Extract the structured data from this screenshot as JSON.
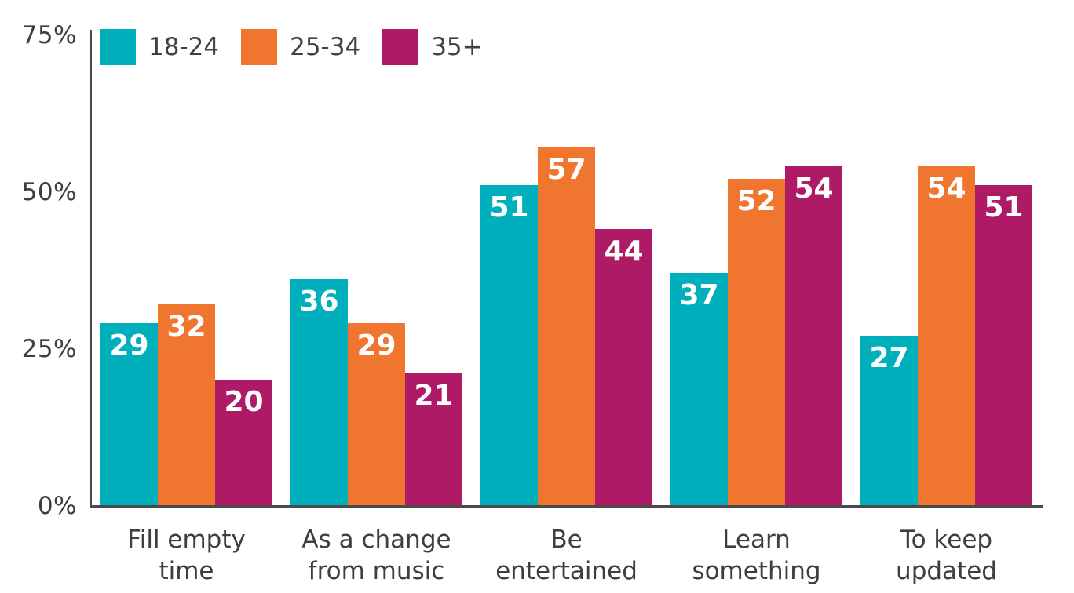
{
  "chart_data": {
    "type": "bar",
    "title": "",
    "categories": [
      "Fill empty time",
      "As a change from music",
      "Be entertained",
      "Learn something",
      "To keep updated"
    ],
    "category_label_lines": [
      [
        "Fill empty",
        "time"
      ],
      [
        "As a change",
        "from music"
      ],
      [
        "Be",
        "entertained"
      ],
      [
        "Learn",
        "something"
      ],
      [
        "To keep",
        "updated"
      ]
    ],
    "series": [
      {
        "name": "18-24",
        "color": "#00AFBC",
        "values": [
          29,
          36,
          51,
          37,
          27
        ]
      },
      {
        "name": "25-34",
        "color": "#F0752F",
        "values": [
          32,
          29,
          57,
          52,
          54
        ]
      },
      {
        "name": "35+",
        "color": "#AE1A66",
        "values": [
          20,
          21,
          44,
          54,
          51
        ]
      }
    ],
    "y_ticks": [
      {
        "label": "0%",
        "value": 0
      },
      {
        "label": "25%",
        "value": 25
      },
      {
        "label": "50%",
        "value": 50
      },
      {
        "label": "75%",
        "value": 75
      }
    ],
    "ylim": [
      0,
      75
    ],
    "xlabel": "",
    "ylabel": "",
    "grid": false,
    "legend_position": "top-left",
    "value_labels_shown": true,
    "value_label_color": "#FFFFFF",
    "axis_color": "#4A4A4B",
    "text_color": "#3E3E3E",
    "background_color": "#FFFFFF"
  }
}
